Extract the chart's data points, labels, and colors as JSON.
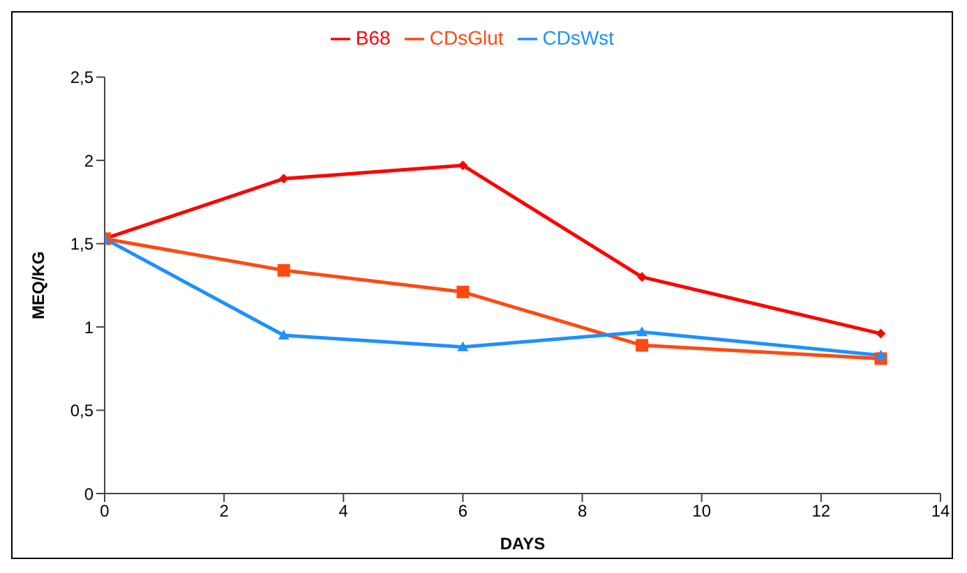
{
  "chart_data": {
    "type": "line",
    "xlabel": "DAYS",
    "ylabel": "MEQ/KG",
    "x": [
      0,
      3,
      6,
      9,
      13
    ],
    "series": [
      {
        "name": "B68",
        "color": "#ff0000",
        "marker": "diamond",
        "values": [
          1.53,
          1.89,
          1.97,
          1.3,
          0.96
        ]
      },
      {
        "name": "CDsGlut",
        "color": "#fe4a12",
        "marker": "square",
        "values": [
          1.53,
          1.34,
          1.21,
          0.89,
          0.81
        ]
      },
      {
        "name": "CDsWst",
        "color": "#1e90ff",
        "marker": "triangle",
        "values": [
          1.53,
          0.95,
          0.88,
          0.97,
          0.83
        ]
      }
    ],
    "xlim": [
      0,
      14
    ],
    "xticks": [
      0,
      2,
      4,
      6,
      8,
      10,
      12,
      14
    ],
    "ylim": [
      0,
      2.5
    ],
    "yticks": [
      0,
      {
        "value": 0.5,
        "label": "0,5"
      },
      1,
      {
        "value": 1.5,
        "label": "1,5"
      },
      2,
      {
        "value": 2.5,
        "label": "2,5"
      }
    ],
    "grid": false,
    "legend": "top",
    "line_style": "solid"
  }
}
